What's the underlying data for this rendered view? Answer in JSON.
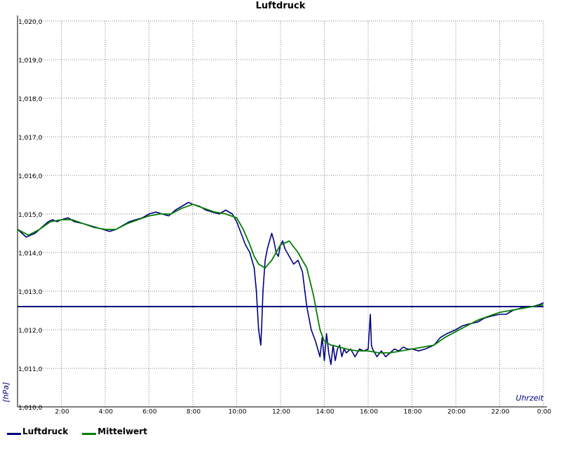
{
  "colors": {
    "luftdruck": "#000080",
    "mittelwert": "#008000",
    "reference_line": "#000080",
    "grid": "#808080",
    "axis_label": "#000080"
  },
  "chart_data": {
    "type": "line",
    "title": "Luftdruck",
    "ylabel": "[hPa]",
    "xlabel": "Uhrzeit",
    "ylim": [
      1010.0,
      1020.0
    ],
    "xlim": [
      0,
      24
    ],
    "y_ticks": [
      "1,010,0",
      "1,011,0",
      "1,012,0",
      "1,013,0",
      "1,014,0",
      "1,015,0",
      "1,016,0",
      "1,017,0",
      "1,018,0",
      "1,019,0",
      "1,020,0"
    ],
    "x_ticks": [
      "2:00",
      "4:00",
      "6:00",
      "8:00",
      "10:00",
      "12:00",
      "14:00",
      "16:00",
      "18:00",
      "20:00",
      "22:00",
      "0:00"
    ],
    "grid": true,
    "legend_placement": "bottom-left",
    "reference_line": 1012.6,
    "series": [
      {
        "name": "Luftdruck",
        "x": [
          0,
          0.2,
          0.4,
          0.6,
          0.8,
          1.0,
          1.2,
          1.4,
          1.6,
          1.8,
          2.0,
          2.3,
          2.6,
          3.0,
          3.3,
          3.6,
          3.9,
          4.2,
          4.5,
          4.8,
          5.1,
          5.4,
          5.7,
          6.0,
          6.3,
          6.6,
          6.9,
          7.2,
          7.5,
          7.8,
          8.0,
          8.3,
          8.6,
          8.9,
          9.2,
          9.5,
          9.8,
          10.0,
          10.2,
          10.4,
          10.6,
          10.8,
          10.9,
          11.0,
          11.1,
          11.15,
          11.2,
          11.3,
          11.4,
          11.5,
          11.6,
          11.7,
          11.8,
          11.9,
          12.0,
          12.1,
          12.2,
          12.4,
          12.6,
          12.8,
          13.0,
          13.2,
          13.4,
          13.6,
          13.8,
          13.9,
          14.0,
          14.1,
          14.2,
          14.3,
          14.4,
          14.5,
          14.6,
          14.7,
          14.8,
          14.9,
          15.0,
          15.2,
          15.4,
          15.6,
          15.8,
          16.0,
          16.1,
          16.15,
          16.2,
          16.4,
          16.6,
          16.8,
          17.0,
          17.2,
          17.4,
          17.6,
          17.8,
          18.0,
          18.3,
          18.6,
          19.0,
          19.3,
          19.6,
          20.0,
          20.3,
          20.6,
          21.0,
          21.3,
          21.6,
          22.0,
          22.3,
          22.6,
          22.9,
          23.2,
          23.5,
          23.8,
          24.0
        ],
        "values": [
          1014.6,
          1014.5,
          1014.4,
          1014.45,
          1014.5,
          1014.6,
          1014.7,
          1014.8,
          1014.85,
          1014.8,
          1014.85,
          1014.9,
          1014.8,
          1014.75,
          1014.7,
          1014.65,
          1014.6,
          1014.55,
          1014.6,
          1014.7,
          1014.8,
          1014.85,
          1014.9,
          1015.0,
          1015.05,
          1015.0,
          1014.95,
          1015.1,
          1015.2,
          1015.3,
          1015.25,
          1015.2,
          1015.1,
          1015.05,
          1015.0,
          1015.1,
          1015.0,
          1014.8,
          1014.5,
          1014.2,
          1014.0,
          1013.6,
          1013.0,
          1012.0,
          1011.6,
          1012.2,
          1013.0,
          1013.8,
          1014.1,
          1014.3,
          1014.5,
          1014.3,
          1014.0,
          1013.9,
          1014.2,
          1014.3,
          1014.1,
          1013.9,
          1013.7,
          1013.8,
          1013.5,
          1012.6,
          1012.0,
          1011.7,
          1011.3,
          1011.8,
          1011.2,
          1011.9,
          1011.4,
          1011.1,
          1011.6,
          1011.2,
          1011.5,
          1011.6,
          1011.3,
          1011.5,
          1011.4,
          1011.5,
          1011.3,
          1011.5,
          1011.45,
          1011.5,
          1012.4,
          1011.6,
          1011.5,
          1011.3,
          1011.45,
          1011.3,
          1011.4,
          1011.5,
          1011.45,
          1011.55,
          1011.5,
          1011.5,
          1011.45,
          1011.5,
          1011.6,
          1011.8,
          1011.9,
          1012.0,
          1012.1,
          1012.15,
          1012.2,
          1012.3,
          1012.35,
          1012.4,
          1012.4,
          1012.5,
          1012.55,
          1012.6,
          1012.6,
          1012.65,
          1012.7
        ]
      },
      {
        "name": "Mittelwert",
        "x": [
          0,
          0.5,
          1.0,
          1.5,
          2.0,
          2.5,
          3.0,
          3.5,
          4.0,
          4.5,
          5.0,
          5.5,
          6.0,
          6.5,
          7.0,
          7.5,
          8.0,
          8.5,
          9.0,
          9.5,
          10.0,
          10.3,
          10.6,
          10.8,
          11.0,
          11.3,
          11.6,
          12.0,
          12.4,
          12.8,
          13.2,
          13.5,
          13.8,
          14.0,
          14.3,
          14.7,
          15.0,
          15.5,
          16.0,
          16.5,
          17.0,
          17.5,
          18.0,
          18.5,
          19.0,
          19.5,
          20.0,
          20.5,
          21.0,
          21.5,
          22.0,
          22.5,
          23.0,
          23.5,
          24.0
        ],
        "values": [
          1014.6,
          1014.45,
          1014.6,
          1014.8,
          1014.85,
          1014.85,
          1014.75,
          1014.65,
          1014.6,
          1014.6,
          1014.75,
          1014.85,
          1014.95,
          1015.0,
          1015.0,
          1015.15,
          1015.25,
          1015.15,
          1015.05,
          1015.0,
          1014.9,
          1014.6,
          1014.2,
          1013.9,
          1013.7,
          1013.6,
          1013.8,
          1014.2,
          1014.3,
          1014.0,
          1013.6,
          1012.9,
          1012.0,
          1011.7,
          1011.6,
          1011.55,
          1011.5,
          1011.45,
          1011.45,
          1011.4,
          1011.4,
          1011.45,
          1011.5,
          1011.55,
          1011.6,
          1011.8,
          1011.95,
          1012.1,
          1012.25,
          1012.35,
          1012.45,
          1012.5,
          1012.55,
          1012.6,
          1012.65
        ]
      }
    ]
  }
}
